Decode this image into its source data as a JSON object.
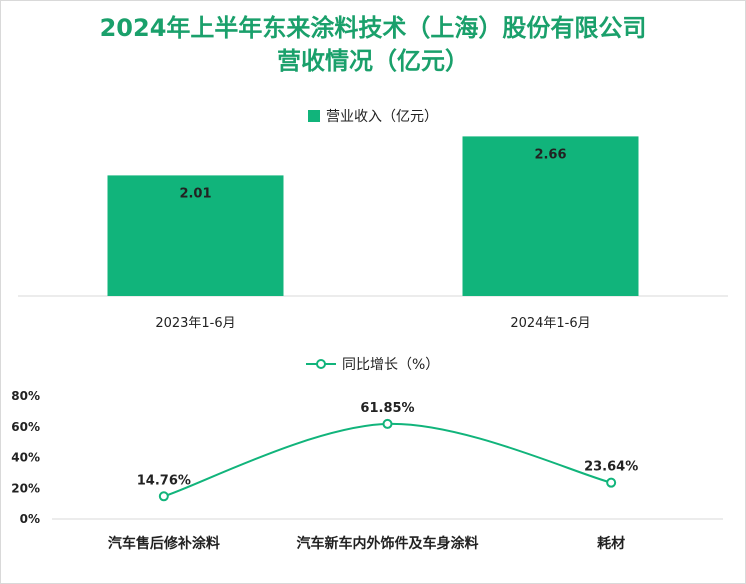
{
  "title_line1": "2024年上半年东来涂料技术（上海）股份有限公司",
  "title_line2": "营收情况（亿元）",
  "colors": {
    "accent": "#11b47b",
    "title": "#1aa06b",
    "axis": "#d9d9d9",
    "text": "#222222"
  },
  "chart_data": [
    {
      "type": "bar",
      "categories": [
        "2023年1-6月",
        "2024年1-6月"
      ],
      "series": [
        {
          "name": "营业收入（亿元）",
          "values": [
            2.01,
            2.66
          ]
        }
      ],
      "data_labels": [
        "2.01",
        "2.66"
      ],
      "ylim": [
        0,
        3.0
      ],
      "legend": "top-center",
      "grid": false
    },
    {
      "type": "line",
      "categories": [
        "汽车售后修补涂料",
        "汽车新车内外饰件及车身涂料",
        "耗材"
      ],
      "series": [
        {
          "name": "同比增长（%）",
          "values": [
            14.76,
            61.85,
            23.64
          ]
        }
      ],
      "data_labels": [
        "14.76%",
        "61.85%",
        "23.64%"
      ],
      "yticks": [
        "0%",
        "20%",
        "40%",
        "60%",
        "80%"
      ],
      "ylim": [
        0,
        80
      ],
      "legend": "top-center",
      "grid": false,
      "smooth": true
    }
  ]
}
